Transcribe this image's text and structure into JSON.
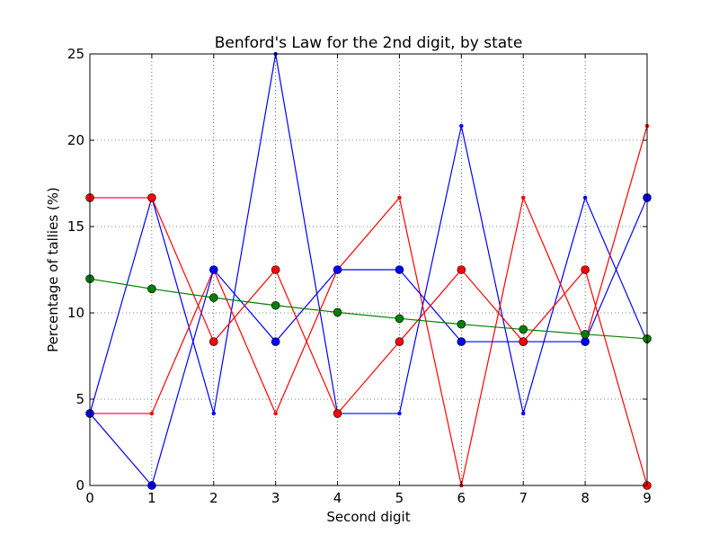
{
  "chart_data": {
    "type": "line",
    "title": "Benford's Law for the 2nd digit, by state",
    "xlabel": "Second digit",
    "ylabel": "Percentage of tallies (%)",
    "xlim": [
      0,
      9
    ],
    "ylim": [
      0,
      25
    ],
    "x": [
      0,
      1,
      2,
      3,
      4,
      5,
      6,
      7,
      8,
      9
    ],
    "x_ticks": [
      "0",
      "1",
      "2",
      "3",
      "4",
      "5",
      "6",
      "7",
      "8",
      "9"
    ],
    "y_ticks": [
      "0",
      "5",
      "10",
      "15",
      "20",
      "25"
    ],
    "y_tick_values": [
      0,
      5,
      10,
      15,
      20,
      25
    ],
    "grid": true,
    "legend": "none",
    "series": [
      {
        "color": "#0000ff",
        "marker": "small-dot",
        "values": [
          4.17,
          16.67,
          4.17,
          25.0,
          4.17,
          4.17,
          20.83,
          4.17,
          16.67,
          8.33
        ]
      },
      {
        "color": "#ff0000",
        "marker": "small-dot",
        "values": [
          4.17,
          4.17,
          12.5,
          4.17,
          12.5,
          16.67,
          0.0,
          16.67,
          8.33,
          20.83
        ]
      },
      {
        "color": "#0000ff",
        "marker": "large-circle",
        "values": [
          4.17,
          0.0,
          12.5,
          8.33,
          12.5,
          12.5,
          8.33,
          8.33,
          8.33,
          16.67
        ]
      },
      {
        "color": "#ff0000",
        "marker": "large-circle",
        "values": [
          16.67,
          16.67,
          8.33,
          12.5,
          4.17,
          8.33,
          12.5,
          8.33,
          12.5,
          0.0
        ]
      },
      {
        "color": "#008000",
        "marker": "large-circle",
        "values": [
          11.97,
          11.39,
          10.88,
          10.43,
          10.03,
          9.67,
          9.34,
          9.04,
          8.76,
          8.5
        ]
      }
    ]
  }
}
